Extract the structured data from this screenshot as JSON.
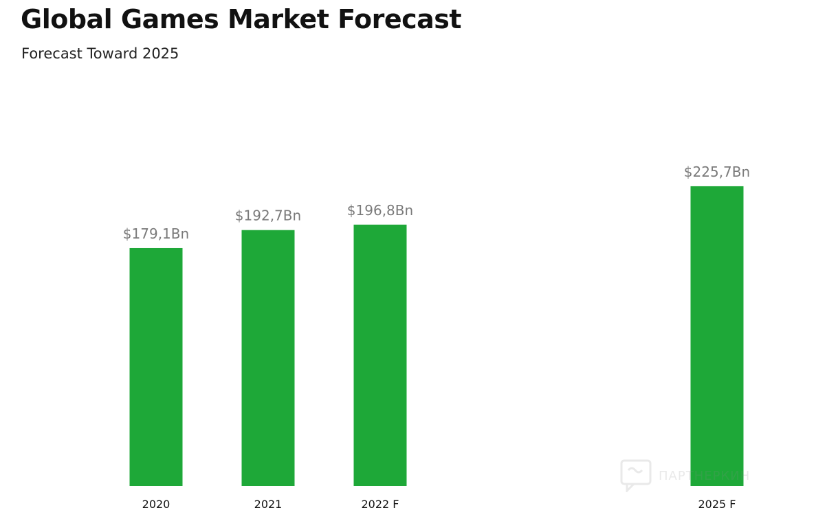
{
  "header": {
    "title": "Global Games Market Forecast",
    "subtitle": "Forecast Toward 2025"
  },
  "colors": {
    "bar": "#1ea838",
    "value_label": "#7a7a7a",
    "category_label": "#111111"
  },
  "watermark": {
    "icon": "chat-bubble-icon",
    "text": "ПАРТНЕРКИН"
  },
  "chart_data": {
    "type": "bar",
    "title": "Global Games Market Forecast",
    "subtitle": "Forecast Toward 2025",
    "categories": [
      "2020",
      "2021",
      "2022 F",
      "2025 F"
    ],
    "values": [
      179.1,
      192.7,
      196.8,
      225.7
    ],
    "value_labels": [
      "$179,1Bn",
      "$192,7Bn",
      "$196,8Bn",
      "$225,7Bn"
    ],
    "unit": "Bn",
    "xlabel": "",
    "ylabel": "",
    "ylim": [
      0,
      235.5
    ],
    "grid": false,
    "legend": "none"
  }
}
